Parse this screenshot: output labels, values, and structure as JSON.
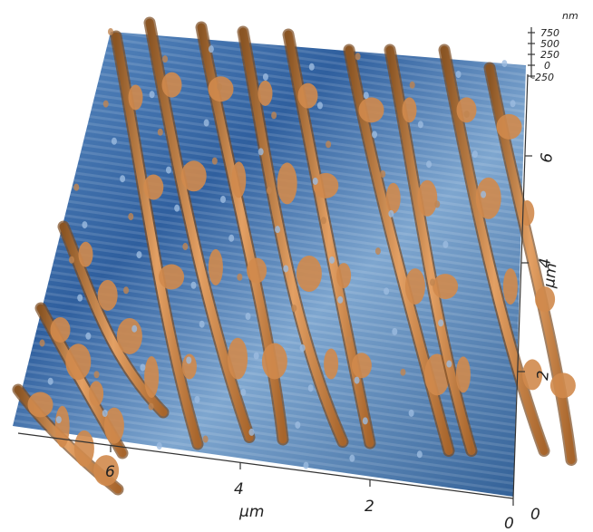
{
  "z_axis": {
    "unit": "nm",
    "ticks": [
      "750",
      "500",
      "250",
      "0",
      "-250"
    ]
  },
  "x_axis": {
    "label": "µm",
    "ticks": [
      "6",
      "4",
      "2",
      "0"
    ]
  },
  "y_axis": {
    "label": "µm",
    "ticks": [
      "0",
      "2",
      "4",
      "6"
    ]
  }
}
